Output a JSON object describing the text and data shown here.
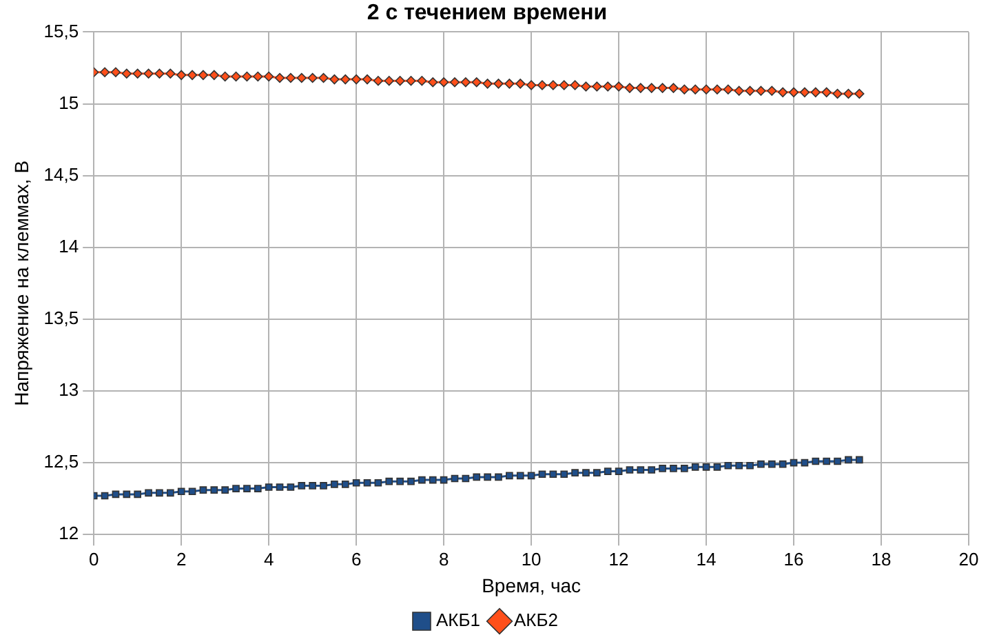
{
  "chart_data": {
    "type": "line",
    "title": "2 с течением времени",
    "xlabel": "Время, час",
    "ylabel": "Напряжение на клеммах, В",
    "x": [
      0,
      0.25,
      0.5,
      0.75,
      1,
      1.25,
      1.5,
      1.75,
      2,
      2.25,
      2.5,
      2.75,
      3,
      3.25,
      3.5,
      3.75,
      4,
      4.25,
      4.5,
      4.75,
      5,
      5.25,
      5.5,
      5.75,
      6,
      6.25,
      6.5,
      6.75,
      7,
      7.25,
      7.5,
      7.75,
      8,
      8.25,
      8.5,
      8.75,
      9,
      9.25,
      9.5,
      9.75,
      10,
      10.25,
      10.5,
      10.75,
      11,
      11.25,
      11.5,
      11.75,
      12,
      12.25,
      12.5,
      12.75,
      13,
      13.25,
      13.5,
      13.75,
      14,
      14.25,
      14.5,
      14.75,
      15,
      15.25,
      15.5,
      15.75,
      16,
      16.25,
      16.5,
      16.75,
      17,
      17.25,
      17.5
    ],
    "series": [
      {
        "name": "АКБ1",
        "color": "#1f4e89",
        "marker": "square",
        "values": [
          12.27,
          12.27,
          12.28,
          12.28,
          12.28,
          12.29,
          12.29,
          12.29,
          12.3,
          12.3,
          12.31,
          12.31,
          12.31,
          12.32,
          12.32,
          12.32,
          12.33,
          12.33,
          12.33,
          12.34,
          12.34,
          12.34,
          12.35,
          12.35,
          12.36,
          12.36,
          12.36,
          12.37,
          12.37,
          12.37,
          12.38,
          12.38,
          12.38,
          12.39,
          12.39,
          12.4,
          12.4,
          12.4,
          12.41,
          12.41,
          12.41,
          12.42,
          12.42,
          12.42,
          12.43,
          12.43,
          12.43,
          12.44,
          12.44,
          12.45,
          12.45,
          12.45,
          12.46,
          12.46,
          12.46,
          12.47,
          12.47,
          12.47,
          12.48,
          12.48,
          12.48,
          12.49,
          12.49,
          12.49,
          12.5,
          12.5,
          12.51,
          12.51,
          12.51,
          12.52,
          12.52
        ]
      },
      {
        "name": "АКБ2",
        "color": "#ff4f1a",
        "marker": "diamond",
        "values": [
          15.22,
          15.22,
          15.22,
          15.21,
          15.21,
          15.21,
          15.21,
          15.21,
          15.2,
          15.2,
          15.2,
          15.2,
          15.19,
          15.19,
          15.19,
          15.19,
          15.19,
          15.18,
          15.18,
          15.18,
          15.18,
          15.18,
          15.17,
          15.17,
          15.17,
          15.17,
          15.16,
          15.16,
          15.16,
          15.16,
          15.16,
          15.15,
          15.15,
          15.15,
          15.15,
          15.15,
          15.14,
          15.14,
          15.14,
          15.14,
          15.13,
          15.13,
          15.13,
          15.13,
          15.13,
          15.12,
          15.12,
          15.12,
          15.12,
          15.11,
          15.11,
          15.11,
          15.11,
          15.11,
          15.1,
          15.1,
          15.1,
          15.1,
          15.1,
          15.09,
          15.09,
          15.09,
          15.09,
          15.08,
          15.08,
          15.08,
          15.08,
          15.08,
          15.07,
          15.07,
          15.07
        ]
      }
    ],
    "xlim": [
      0,
      20
    ],
    "xticks": [
      0,
      2,
      4,
      6,
      8,
      10,
      12,
      14,
      16,
      18,
      20
    ],
    "ylim": [
      12,
      15.5
    ],
    "yticks": [
      12,
      {
        "value": 12.5,
        "label": "12,5"
      },
      13,
      {
        "value": 13.5,
        "label": "13,5"
      },
      14,
      {
        "value": 14.5,
        "label": "14,5"
      },
      15,
      {
        "value": 15.5,
        "label": "15,5"
      }
    ],
    "grid": true,
    "legend": "bottom"
  }
}
